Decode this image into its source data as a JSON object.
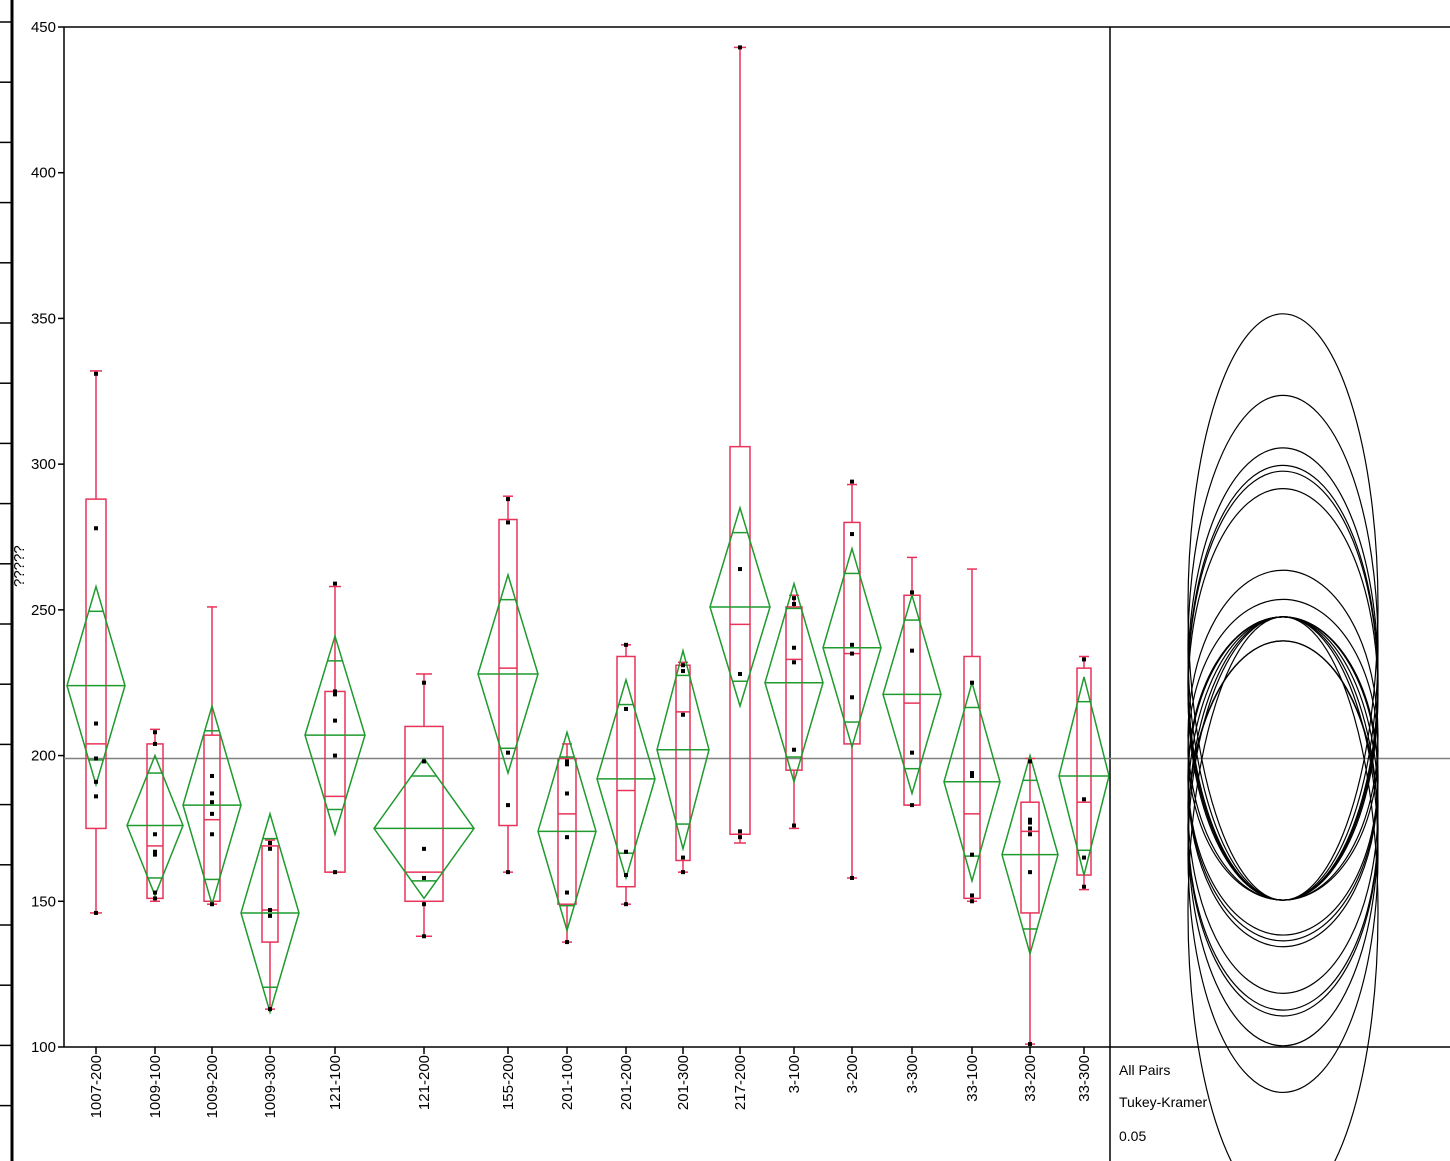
{
  "chart_data": {
    "type": "box",
    "ylabel": "?????",
    "ylim": [
      100,
      450
    ],
    "yticks": [
      100,
      150,
      200,
      250,
      300,
      350,
      400,
      450
    ],
    "grand_mean": 199,
    "alpha_label": "0.05",
    "comparison_labels": [
      "All Pairs",
      "Tukey-Kramer",
      "0.05"
    ],
    "colors": {
      "box": "#e8335a",
      "diamond": "#1f9a2e",
      "axis": "#000000",
      "mean_line": "#808080",
      "points": "#000000",
      "circles": "#000000"
    },
    "groups": [
      {
        "label": "1007-200",
        "min": 146,
        "q1": 175,
        "median": 204,
        "q3": 288,
        "max": 332,
        "mean": 224,
        "ci_half": 34,
        "points": [
          146,
          186,
          191,
          199,
          211,
          278,
          331
        ]
      },
      {
        "label": "1009-100",
        "min": 150,
        "q1": 151,
        "median": 169,
        "q3": 204,
        "max": 209,
        "mean": 176,
        "ci_half": 24,
        "points": [
          151,
          153,
          166,
          167,
          173,
          204,
          208
        ]
      },
      {
        "label": "1009-200",
        "min": 149,
        "q1": 150,
        "median": 178,
        "q3": 207,
        "max": 251,
        "mean": 183,
        "ci_half": 34,
        "points": [
          149,
          173,
          180,
          184,
          187,
          193
        ]
      },
      {
        "label": "1009-300",
        "min": 113,
        "q1": 136,
        "median": 147,
        "q3": 169,
        "max": 171,
        "mean": 146,
        "ci_half": 34,
        "points": [
          113,
          145,
          147,
          168,
          170
        ]
      },
      {
        "label": "121-100",
        "min": 160,
        "q1": 160,
        "median": 186,
        "q3": 222,
        "max": 258,
        "mean": 207,
        "ci_half": 34,
        "points": [
          160,
          200,
          212,
          221,
          222,
          259
        ]
      },
      {
        "label": "121-200",
        "min": 138,
        "q1": 150,
        "median": 160,
        "q3": 210,
        "max": 228,
        "mean": 175,
        "ci_half": 24,
        "points": [
          138,
          149,
          158,
          168,
          198,
          225
        ]
      },
      {
        "label": "155-200",
        "min": 160,
        "q1": 176,
        "median": 230,
        "q3": 281,
        "max": 289,
        "mean": 228,
        "ci_half": 34,
        "points": [
          160,
          183,
          201,
          280,
          288
        ]
      },
      {
        "label": "201-100",
        "min": 136,
        "q1": 149,
        "median": 180,
        "q3": 199,
        "max": 204,
        "mean": 174,
        "ci_half": 34,
        "points": [
          136,
          153,
          172,
          187,
          197,
          198
        ]
      },
      {
        "label": "201-200",
        "min": 149,
        "q1": 155,
        "median": 188,
        "q3": 234,
        "max": 238,
        "mean": 192,
        "ci_half": 34,
        "points": [
          149,
          159,
          167,
          216,
          238
        ]
      },
      {
        "label": "201-300",
        "min": 160,
        "q1": 164,
        "median": 215,
        "q3": 231,
        "max": 232,
        "mean": 202,
        "ci_half": 34,
        "points": [
          160,
          165,
          214,
          229,
          231
        ]
      },
      {
        "label": "217-200",
        "min": 170,
        "q1": 173,
        "median": 245,
        "q3": 306,
        "max": 443,
        "mean": 251,
        "ci_half": 34,
        "points": [
          172,
          174,
          228,
          264,
          443
        ]
      },
      {
        "label": "3-100",
        "min": 175,
        "q1": 195,
        "median": 233,
        "q3": 251,
        "max": 255,
        "mean": 225,
        "ci_half": 34,
        "points": [
          176,
          202,
          232,
          237,
          252,
          254
        ]
      },
      {
        "label": "3-200",
        "min": 158,
        "q1": 204,
        "median": 235,
        "q3": 280,
        "max": 293,
        "mean": 237,
        "ci_half": 34,
        "points": [
          158,
          220,
          235,
          238,
          276,
          294
        ]
      },
      {
        "label": "3-300",
        "min": 183,
        "q1": 183,
        "median": 218,
        "q3": 255,
        "max": 268,
        "mean": 221,
        "ci_half": 34,
        "points": [
          183,
          201,
          236,
          256
        ]
      },
      {
        "label": "33-100",
        "min": 150,
        "q1": 151,
        "median": 180,
        "q3": 234,
        "max": 264,
        "mean": 191,
        "ci_half": 34,
        "points": [
          150,
          152,
          166,
          193,
          194,
          225
        ]
      },
      {
        "label": "33-200",
        "min": 101,
        "q1": 146,
        "median": 174,
        "q3": 184,
        "max": 199,
        "mean": 166,
        "ci_half": 34,
        "points": [
          101,
          160,
          173,
          175,
          177,
          178,
          198
        ]
      },
      {
        "label": "33-300",
        "min": 154,
        "q1": 159,
        "median": 184,
        "q3": 230,
        "max": 234,
        "mean": 193,
        "ci_half": 34,
        "points": [
          155,
          165,
          185,
          233
        ]
      }
    ]
  }
}
